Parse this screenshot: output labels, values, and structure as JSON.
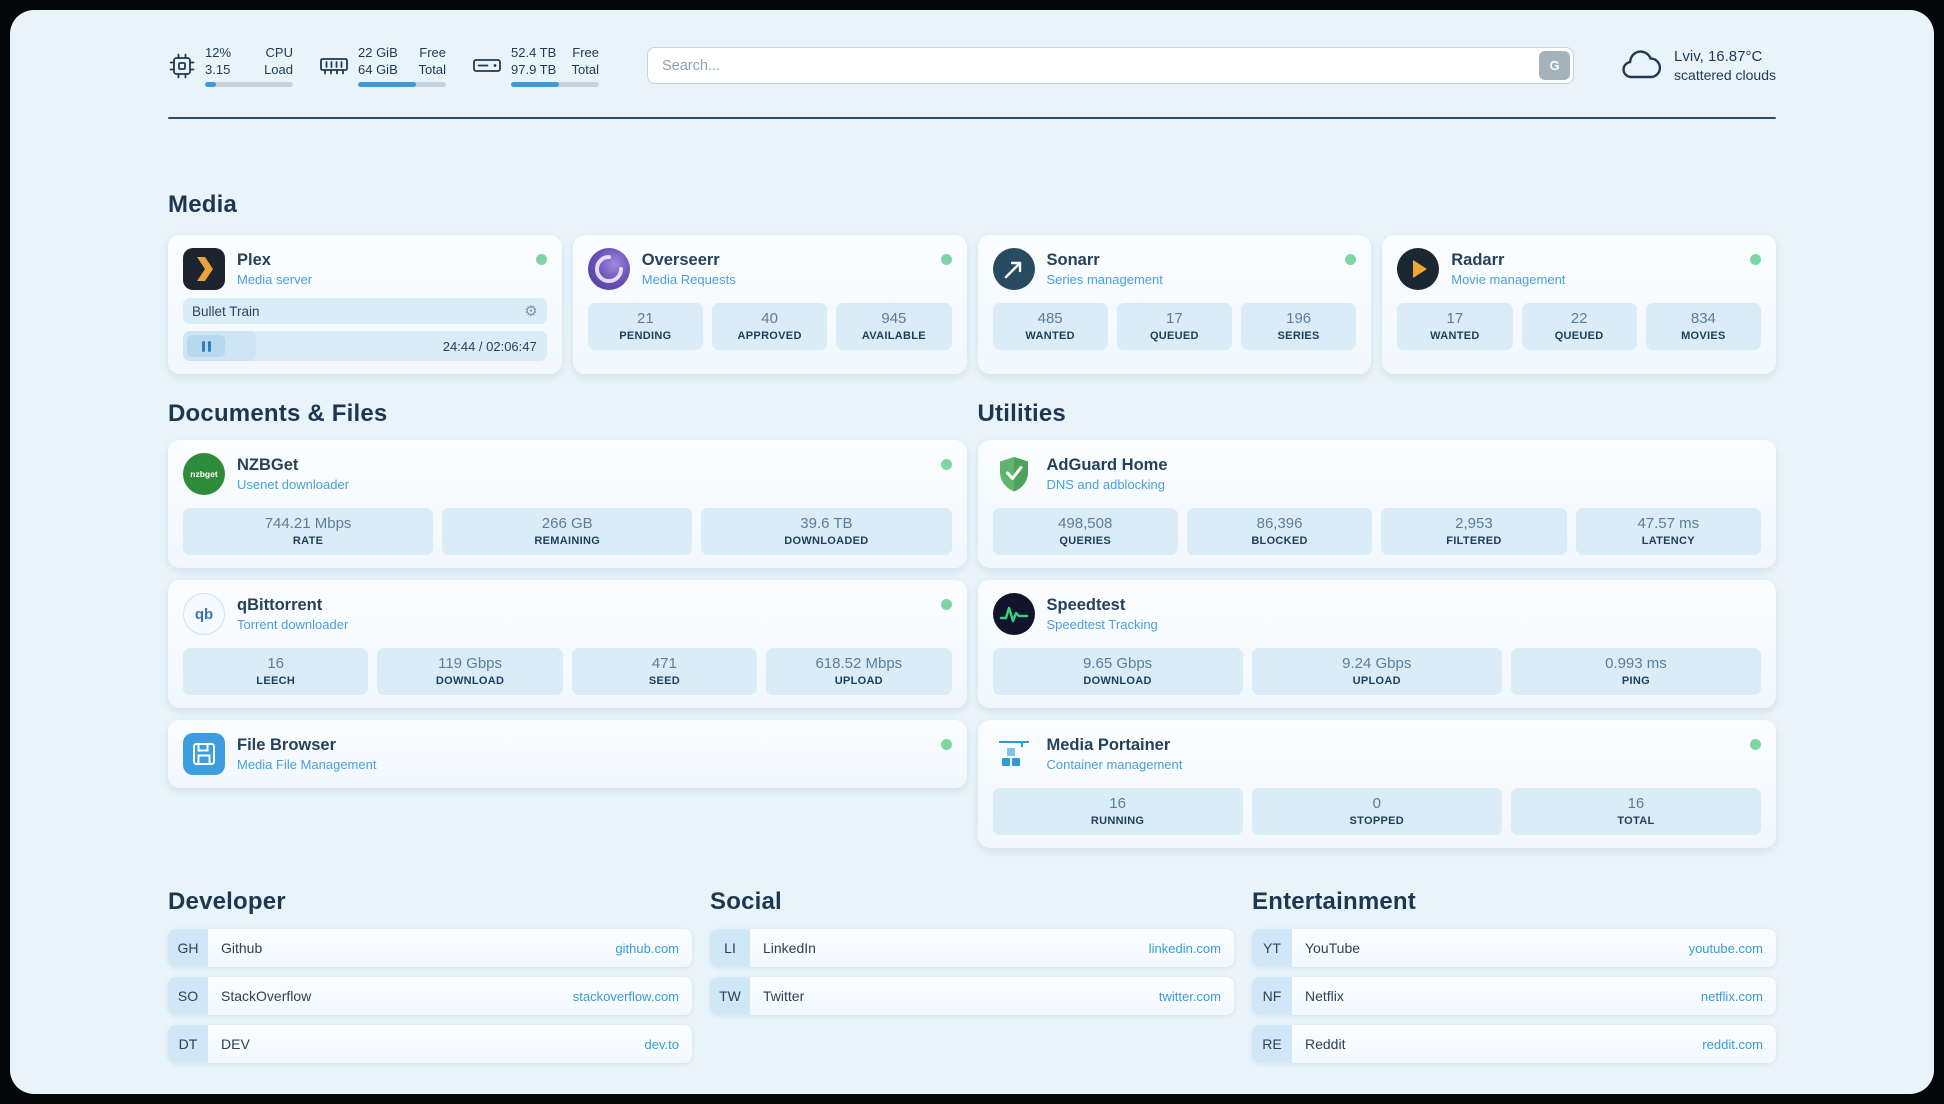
{
  "colors": {
    "accent": "#3d9bd9",
    "status_online": "#7ed7a2",
    "link": "#3d9ad6"
  },
  "topbar": {
    "cpu": {
      "value_top": "12%",
      "value_bottom": "3.15",
      "label_top": "CPU",
      "label_bottom": "Load",
      "progress_percent": 12
    },
    "ram": {
      "value_top": "22 GiB",
      "value_bottom": "64 GiB",
      "label_top": "Free",
      "label_bottom": "Total",
      "progress_percent": 66
    },
    "disk": {
      "value_top": "52.4 TB",
      "value_bottom": "97.9 TB",
      "label_top": "Free",
      "label_bottom": "Total",
      "progress_percent": 54
    },
    "search": {
      "placeholder": "Search...",
      "engine_button": "G"
    },
    "weather": {
      "location": "Lviv, 16.87°C",
      "condition": "scattered clouds"
    }
  },
  "icons": {
    "gear": "⚙",
    "nzbget_label": "nzbget",
    "qbittorrent_label": "qb"
  },
  "media": {
    "section_title": "Media",
    "plex": {
      "title": "Plex",
      "subtitle": "Media server",
      "now_playing": "Bullet Train",
      "time": "24:44 / 02:06:47",
      "progress_percent": 20
    },
    "overseerr": {
      "title": "Overseerr",
      "subtitle": "Media Requests",
      "stats": [
        {
          "value": "21",
          "label": "PENDING"
        },
        {
          "value": "40",
          "label": "APPROVED"
        },
        {
          "value": "945",
          "label": "AVAILABLE"
        }
      ]
    },
    "sonarr": {
      "title": "Sonarr",
      "subtitle": "Series management",
      "stats": [
        {
          "value": "485",
          "label": "WANTED"
        },
        {
          "value": "17",
          "label": "QUEUED"
        },
        {
          "value": "196",
          "label": "SERIES"
        }
      ]
    },
    "radarr": {
      "title": "Radarr",
      "subtitle": "Movie management",
      "stats": [
        {
          "value": "17",
          "label": "WANTED"
        },
        {
          "value": "22",
          "label": "QUEUED"
        },
        {
          "value": "834",
          "label": "MOVIES"
        }
      ]
    }
  },
  "documents": {
    "section_title": "Documents & Files",
    "nzbget": {
      "title": "NZBGet",
      "subtitle": "Usenet downloader",
      "stats": [
        {
          "value": "744.21 Mbps",
          "label": "RATE"
        },
        {
          "value": "266 GB",
          "label": "REMAINING"
        },
        {
          "value": "39.6 TB",
          "label": "DOWNLOADED"
        }
      ]
    },
    "qbittorrent": {
      "title": "qBittorrent",
      "subtitle": "Torrent downloader",
      "stats": [
        {
          "value": "16",
          "label": "LEECH"
        },
        {
          "value": "119 Gbps",
          "label": "DOWNLOAD"
        },
        {
          "value": "471",
          "label": "SEED"
        },
        {
          "value": "618.52 Mbps",
          "label": "UPLOAD"
        }
      ]
    },
    "filebrowser": {
      "title": "File Browser",
      "subtitle": "Media File Management"
    }
  },
  "utilities": {
    "section_title": "Utilities",
    "adguard": {
      "title": "AdGuard Home",
      "subtitle": "DNS and adblocking",
      "stats": [
        {
          "value": "498,508",
          "label": "QUERIES"
        },
        {
          "value": "86,396",
          "label": "BLOCKED"
        },
        {
          "value": "2,953",
          "label": "FILTERED"
        },
        {
          "value": "47.57 ms",
          "label": "LATENCY"
        }
      ]
    },
    "speedtest": {
      "title": "Speedtest",
      "subtitle": "Speedtest Tracking",
      "stats": [
        {
          "value": "9.65 Gbps",
          "label": "DOWNLOAD"
        },
        {
          "value": "9.24 Gbps",
          "label": "UPLOAD"
        },
        {
          "value": "0.993 ms",
          "label": "PING"
        }
      ]
    },
    "portainer": {
      "title": "Media Portainer",
      "subtitle": "Container management",
      "stats": [
        {
          "value": "16",
          "label": "RUNNING"
        },
        {
          "value": "0",
          "label": "STOPPED"
        },
        {
          "value": "16",
          "label": "TOTAL"
        }
      ]
    }
  },
  "bookmarks": {
    "developer": {
      "section_title": "Developer",
      "items": [
        {
          "abbr": "GH",
          "label": "Github",
          "url": "github.com"
        },
        {
          "abbr": "SO",
          "label": "StackOverflow",
          "url": "stackoverflow.com"
        },
        {
          "abbr": "DT",
          "label": "DEV",
          "url": "dev.to"
        }
      ]
    },
    "social": {
      "section_title": "Social",
      "items": [
        {
          "abbr": "LI",
          "label": "LinkedIn",
          "url": "linkedin.com"
        },
        {
          "abbr": "TW",
          "label": "Twitter",
          "url": "twitter.com"
        }
      ]
    },
    "entertainment": {
      "section_title": "Entertainment",
      "items": [
        {
          "abbr": "YT",
          "label": "YouTube",
          "url": "youtube.com"
        },
        {
          "abbr": "NF",
          "label": "Netflix",
          "url": "netflix.com"
        },
        {
          "abbr": "RE",
          "label": "Reddit",
          "url": "reddit.com"
        }
      ]
    }
  }
}
